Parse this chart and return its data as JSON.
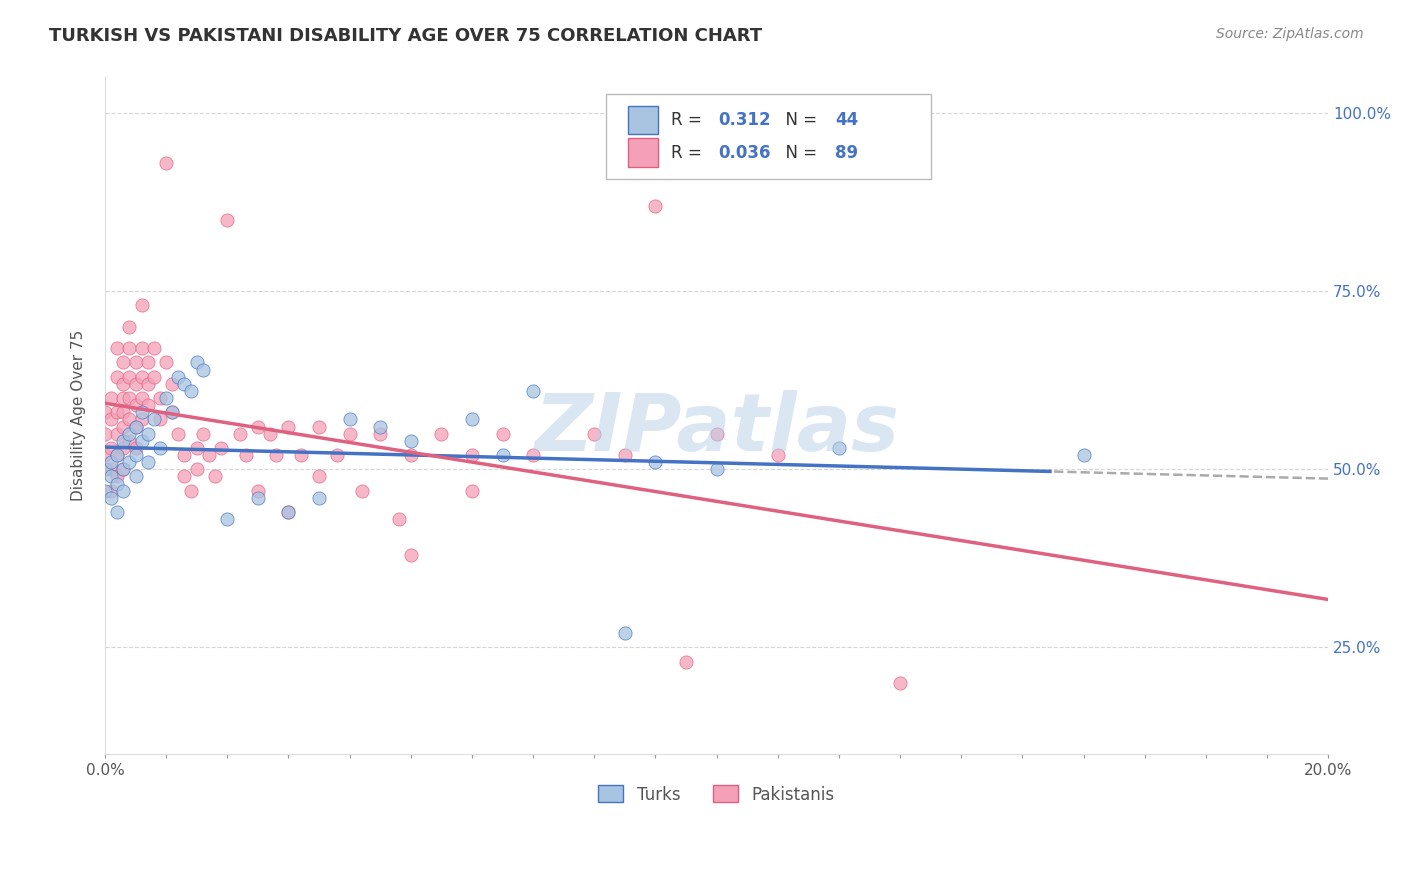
{
  "title": "TURKISH VS PAKISTANI DISABILITY AGE OVER 75 CORRELATION CHART",
  "source": "Source: ZipAtlas.com",
  "ylabel_label": "Disability Age Over 75",
  "xmin": 0.0,
  "xmax": 0.2,
  "ymin": 0.1,
  "ymax": 1.05,
  "ytick_labels": [
    "25.0%",
    "50.0%",
    "75.0%",
    "100.0%"
  ],
  "ytick_values": [
    0.25,
    0.5,
    0.75,
    1.0
  ],
  "turks_color": "#a8c4e0",
  "pakistanis_color": "#f4a0b8",
  "turks_R": "0.312",
  "turks_N": "44",
  "pakistanis_R": "0.036",
  "pakistanis_N": "89",
  "turks_scatter": [
    [
      0.0,
      0.47
    ],
    [
      0.0,
      0.5
    ],
    [
      0.001,
      0.46
    ],
    [
      0.001,
      0.49
    ],
    [
      0.001,
      0.51
    ],
    [
      0.002,
      0.48
    ],
    [
      0.002,
      0.52
    ],
    [
      0.002,
      0.44
    ],
    [
      0.003,
      0.5
    ],
    [
      0.003,
      0.54
    ],
    [
      0.003,
      0.47
    ],
    [
      0.004,
      0.51
    ],
    [
      0.004,
      0.55
    ],
    [
      0.005,
      0.52
    ],
    [
      0.005,
      0.49
    ],
    [
      0.005,
      0.56
    ],
    [
      0.006,
      0.54
    ],
    [
      0.006,
      0.58
    ],
    [
      0.007,
      0.55
    ],
    [
      0.007,
      0.51
    ],
    [
      0.008,
      0.57
    ],
    [
      0.009,
      0.53
    ],
    [
      0.01,
      0.6
    ],
    [
      0.011,
      0.58
    ],
    [
      0.012,
      0.63
    ],
    [
      0.013,
      0.62
    ],
    [
      0.014,
      0.61
    ],
    [
      0.015,
      0.65
    ],
    [
      0.016,
      0.64
    ],
    [
      0.02,
      0.43
    ],
    [
      0.025,
      0.46
    ],
    [
      0.03,
      0.44
    ],
    [
      0.035,
      0.46
    ],
    [
      0.04,
      0.57
    ],
    [
      0.045,
      0.56
    ],
    [
      0.05,
      0.54
    ],
    [
      0.06,
      0.57
    ],
    [
      0.065,
      0.52
    ],
    [
      0.07,
      0.61
    ],
    [
      0.085,
      0.27
    ],
    [
      0.09,
      0.51
    ],
    [
      0.1,
      0.5
    ],
    [
      0.12,
      0.53
    ],
    [
      0.16,
      0.52
    ]
  ],
  "pakistanis_scatter": [
    [
      0.0,
      0.55
    ],
    [
      0.0,
      0.52
    ],
    [
      0.0,
      0.58
    ],
    [
      0.001,
      0.53
    ],
    [
      0.001,
      0.57
    ],
    [
      0.001,
      0.5
    ],
    [
      0.001,
      0.47
    ],
    [
      0.001,
      0.6
    ],
    [
      0.002,
      0.55
    ],
    [
      0.002,
      0.58
    ],
    [
      0.002,
      0.52
    ],
    [
      0.002,
      0.49
    ],
    [
      0.002,
      0.63
    ],
    [
      0.002,
      0.67
    ],
    [
      0.003,
      0.6
    ],
    [
      0.003,
      0.56
    ],
    [
      0.003,
      0.53
    ],
    [
      0.003,
      0.5
    ],
    [
      0.003,
      0.65
    ],
    [
      0.003,
      0.62
    ],
    [
      0.003,
      0.58
    ],
    [
      0.004,
      0.63
    ],
    [
      0.004,
      0.6
    ],
    [
      0.004,
      0.57
    ],
    [
      0.004,
      0.54
    ],
    [
      0.004,
      0.67
    ],
    [
      0.004,
      0.7
    ],
    [
      0.005,
      0.65
    ],
    [
      0.005,
      0.62
    ],
    [
      0.005,
      0.59
    ],
    [
      0.005,
      0.56
    ],
    [
      0.005,
      0.53
    ],
    [
      0.006,
      0.67
    ],
    [
      0.006,
      0.63
    ],
    [
      0.006,
      0.6
    ],
    [
      0.006,
      0.57
    ],
    [
      0.006,
      0.73
    ],
    [
      0.007,
      0.65
    ],
    [
      0.007,
      0.62
    ],
    [
      0.007,
      0.59
    ],
    [
      0.008,
      0.67
    ],
    [
      0.008,
      0.63
    ],
    [
      0.009,
      0.6
    ],
    [
      0.009,
      0.57
    ],
    [
      0.01,
      0.93
    ],
    [
      0.01,
      0.65
    ],
    [
      0.011,
      0.62
    ],
    [
      0.011,
      0.58
    ],
    [
      0.012,
      0.55
    ],
    [
      0.013,
      0.52
    ],
    [
      0.013,
      0.49
    ],
    [
      0.014,
      0.47
    ],
    [
      0.015,
      0.53
    ],
    [
      0.015,
      0.5
    ],
    [
      0.016,
      0.55
    ],
    [
      0.017,
      0.52
    ],
    [
      0.018,
      0.49
    ],
    [
      0.019,
      0.53
    ],
    [
      0.02,
      0.85
    ],
    [
      0.022,
      0.55
    ],
    [
      0.023,
      0.52
    ],
    [
      0.025,
      0.56
    ],
    [
      0.025,
      0.47
    ],
    [
      0.027,
      0.55
    ],
    [
      0.028,
      0.52
    ],
    [
      0.03,
      0.56
    ],
    [
      0.03,
      0.44
    ],
    [
      0.032,
      0.52
    ],
    [
      0.035,
      0.56
    ],
    [
      0.035,
      0.49
    ],
    [
      0.038,
      0.52
    ],
    [
      0.04,
      0.55
    ],
    [
      0.042,
      0.47
    ],
    [
      0.045,
      0.55
    ],
    [
      0.048,
      0.43
    ],
    [
      0.05,
      0.52
    ],
    [
      0.05,
      0.38
    ],
    [
      0.055,
      0.55
    ],
    [
      0.06,
      0.52
    ],
    [
      0.06,
      0.47
    ],
    [
      0.065,
      0.55
    ],
    [
      0.07,
      0.52
    ],
    [
      0.08,
      0.55
    ],
    [
      0.085,
      0.52
    ],
    [
      0.09,
      0.87
    ],
    [
      0.095,
      0.23
    ],
    [
      0.1,
      0.55
    ],
    [
      0.11,
      0.52
    ],
    [
      0.13,
      0.2
    ]
  ],
  "background_color": "#ffffff",
  "grid_color": "#cccccc",
  "watermark_text": "ZIPatlas",
  "watermark_color": "#b8cfe8",
  "turk_line_color": "#4472c4",
  "pak_line_color": "#e06080",
  "dashed_line_color": "#aaaaaa"
}
